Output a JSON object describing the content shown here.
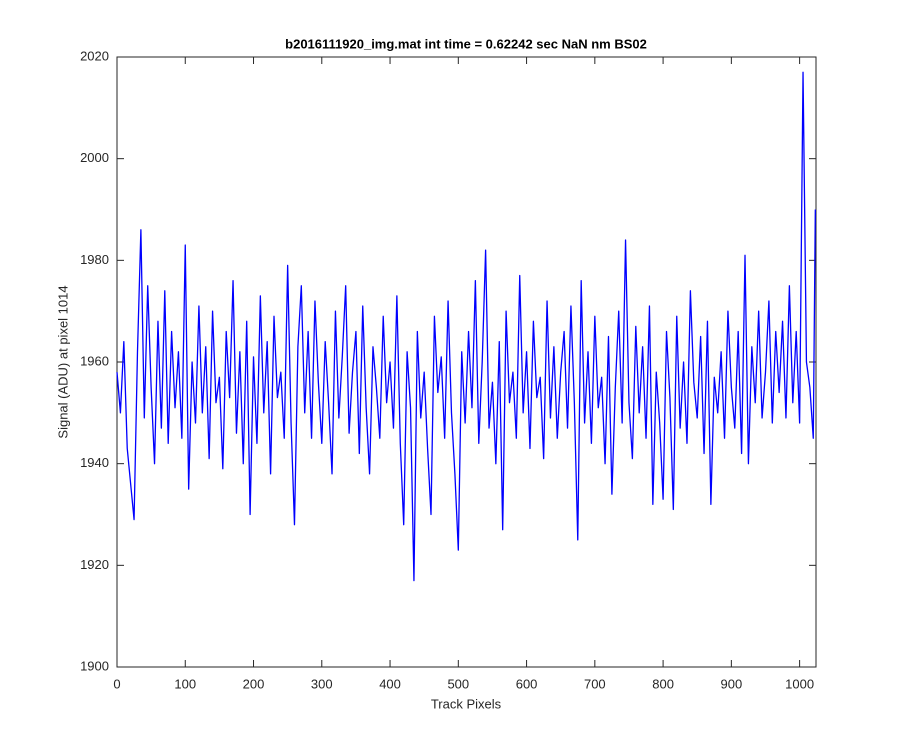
{
  "chart_data": {
    "type": "line",
    "title": "b2016111920_img.mat int time = 0.62242 sec  NaN nm BS02",
    "x_label": "Track Pixels",
    "y_label": "Signal (ADU) at pixel 1014",
    "xlim": [
      0,
      1024
    ],
    "ylim": [
      1900,
      2020
    ],
    "xticks": [
      0,
      100,
      200,
      300,
      400,
      500,
      600,
      700,
      800,
      900,
      1000
    ],
    "yticks": [
      1900,
      1920,
      1940,
      1960,
      1980,
      2000,
      2020
    ],
    "grid": false,
    "x": [
      0,
      5,
      10,
      15,
      20,
      25,
      30,
      35,
      40,
      45,
      50,
      55,
      60,
      65,
      70,
      75,
      80,
      85,
      90,
      95,
      100,
      105,
      110,
      115,
      120,
      125,
      130,
      135,
      140,
      145,
      150,
      155,
      160,
      165,
      170,
      175,
      180,
      185,
      190,
      195,
      200,
      205,
      210,
      215,
      220,
      225,
      230,
      235,
      240,
      245,
      250,
      255,
      260,
      265,
      270,
      275,
      280,
      285,
      290,
      295,
      300,
      305,
      310,
      315,
      320,
      325,
      330,
      335,
      340,
      345,
      350,
      355,
      360,
      365,
      370,
      375,
      380,
      385,
      390,
      395,
      400,
      405,
      410,
      415,
      420,
      425,
      430,
      435,
      440,
      445,
      450,
      455,
      460,
      465,
      470,
      475,
      480,
      485,
      490,
      495,
      500,
      505,
      510,
      515,
      520,
      525,
      530,
      535,
      540,
      545,
      550,
      555,
      560,
      565,
      570,
      575,
      580,
      585,
      590,
      595,
      600,
      605,
      610,
      615,
      620,
      625,
      630,
      635,
      640,
      645,
      650,
      655,
      660,
      665,
      670,
      675,
      680,
      685,
      690,
      695,
      700,
      705,
      710,
      715,
      720,
      725,
      730,
      735,
      740,
      745,
      750,
      755,
      760,
      765,
      770,
      775,
      780,
      785,
      790,
      795,
      800,
      805,
      810,
      815,
      820,
      825,
      830,
      835,
      840,
      845,
      850,
      855,
      860,
      865,
      870,
      875,
      880,
      885,
      890,
      895,
      900,
      905,
      910,
      915,
      920,
      925,
      930,
      935,
      940,
      945,
      950,
      955,
      960,
      965,
      970,
      975,
      980,
      985,
      990,
      995,
      1000,
      1005,
      1010,
      1015,
      1020,
      1023
    ],
    "series": [
      {
        "name": "signal",
        "color": "#0000ff",
        "values": [
          1958,
          1950,
          1964,
          1943,
          1936,
          1929,
          1962,
          1986,
          1949,
          1975,
          1955,
          1940,
          1968,
          1947,
          1974,
          1944,
          1966,
          1951,
          1962,
          1945,
          1983,
          1935,
          1960,
          1948,
          1971,
          1950,
          1963,
          1941,
          1970,
          1952,
          1957,
          1939,
          1966,
          1953,
          1976,
          1946,
          1962,
          1940,
          1968,
          1930,
          1961,
          1944,
          1973,
          1950,
          1964,
          1938,
          1969,
          1953,
          1958,
          1945,
          1979,
          1948,
          1928,
          1963,
          1975,
          1950,
          1966,
          1945,
          1972,
          1956,
          1944,
          1964,
          1952,
          1938,
          1970,
          1949,
          1961,
          1975,
          1946,
          1958,
          1966,
          1942,
          1971,
          1951,
          1938,
          1963,
          1955,
          1945,
          1969,
          1952,
          1960,
          1947,
          1973,
          1944,
          1928,
          1962,
          1951,
          1917,
          1966,
          1949,
          1958,
          1943,
          1930,
          1969,
          1954,
          1961,
          1945,
          1972,
          1950,
          1938,
          1923,
          1962,
          1948,
          1966,
          1951,
          1976,
          1944,
          1960,
          1982,
          1947,
          1956,
          1940,
          1964,
          1927,
          1970,
          1952,
          1958,
          1945,
          1977,
          1950,
          1962,
          1943,
          1968,
          1953,
          1957,
          1941,
          1972,
          1949,
          1963,
          1945,
          1958,
          1966,
          1947,
          1971,
          1952,
          1925,
          1976,
          1948,
          1962,
          1944,
          1969,
          1951,
          1957,
          1940,
          1965,
          1934,
          1955,
          1970,
          1948,
          1984,
          1952,
          1941,
          1967,
          1950,
          1963,
          1945,
          1971,
          1932,
          1958,
          1948,
          1933,
          1966,
          1953,
          1931,
          1969,
          1947,
          1960,
          1944,
          1974,
          1956,
          1949,
          1965,
          1942,
          1968,
          1932,
          1957,
          1950,
          1962,
          1945,
          1970,
          1955,
          1947,
          1966,
          1942,
          1981,
          1940,
          1963,
          1952,
          1970,
          1949,
          1958,
          1972,
          1948,
          1966,
          1954,
          1968,
          1949,
          1975,
          1952,
          1966,
          1948,
          2017,
          1960,
          1955,
          1945,
          1990
        ]
      }
    ]
  }
}
